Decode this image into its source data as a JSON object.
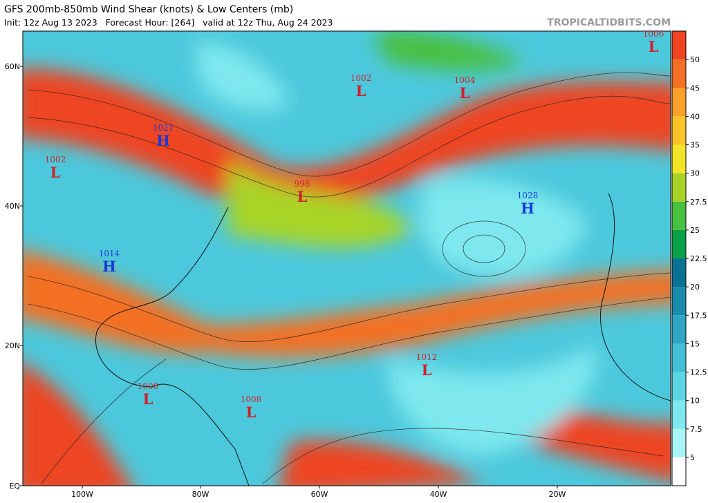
{
  "header": {
    "title": "GFS 200mb-850mb Wind Shear (knots) & Low Centers (mb)",
    "subtitle": "Init: 12z Aug 13 2023   Forecast Hour: [264]   valid at 12z Thu, Aug 24 2023",
    "watermark": "TROPICALTIDBITS.COM"
  },
  "map": {
    "lat_labels": [
      "60N",
      "40N",
      "20N",
      "EQ"
    ],
    "lon_labels": [
      "100W",
      "80W",
      "60W",
      "40W",
      "20W"
    ],
    "centers": [
      {
        "value": "1006",
        "symbol": "L"
      },
      {
        "value": "1002",
        "symbol": "L"
      },
      {
        "value": "1004",
        "symbol": "L"
      },
      {
        "value": "1021",
        "symbol": "H"
      },
      {
        "value": "1002",
        "symbol": "L"
      },
      {
        "value": "998",
        "symbol": "L"
      },
      {
        "value": "1028",
        "symbol": "H"
      },
      {
        "value": "1014",
        "symbol": "H"
      },
      {
        "value": "1012",
        "symbol": "L"
      },
      {
        "value": "1000",
        "symbol": "L"
      },
      {
        "value": "1008",
        "symbol": "L"
      }
    ]
  },
  "colorbar": {
    "ticks": [
      5,
      7.5,
      10,
      12.5,
      15,
      17.5,
      20,
      22.5,
      25,
      27.5,
      30,
      35,
      40,
      45,
      50
    ],
    "colors": [
      "#ffffff",
      "#a8f4f4",
      "#7ee8ee",
      "#5cd6e4",
      "#44c0d6",
      "#2ea6c4",
      "#1a8cac",
      "#0a7292",
      "#08a048",
      "#48c040",
      "#a8d428",
      "#f2e426",
      "#f8c428",
      "#f8a028",
      "#f47024",
      "#ee4422"
    ]
  }
}
